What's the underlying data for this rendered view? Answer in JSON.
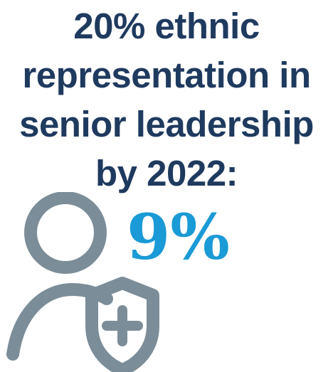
{
  "headline": {
    "lines": [
      "20% ethnic",
      "representation in",
      "senior leadership",
      "by 2022:"
    ]
  },
  "stat": {
    "value": "9%"
  },
  "icon": {
    "name": "person-shield-plus-icon"
  },
  "colors": {
    "headline": "#1f3a5f",
    "accent": "#1a9ad6",
    "icon": "#7b8d99"
  }
}
